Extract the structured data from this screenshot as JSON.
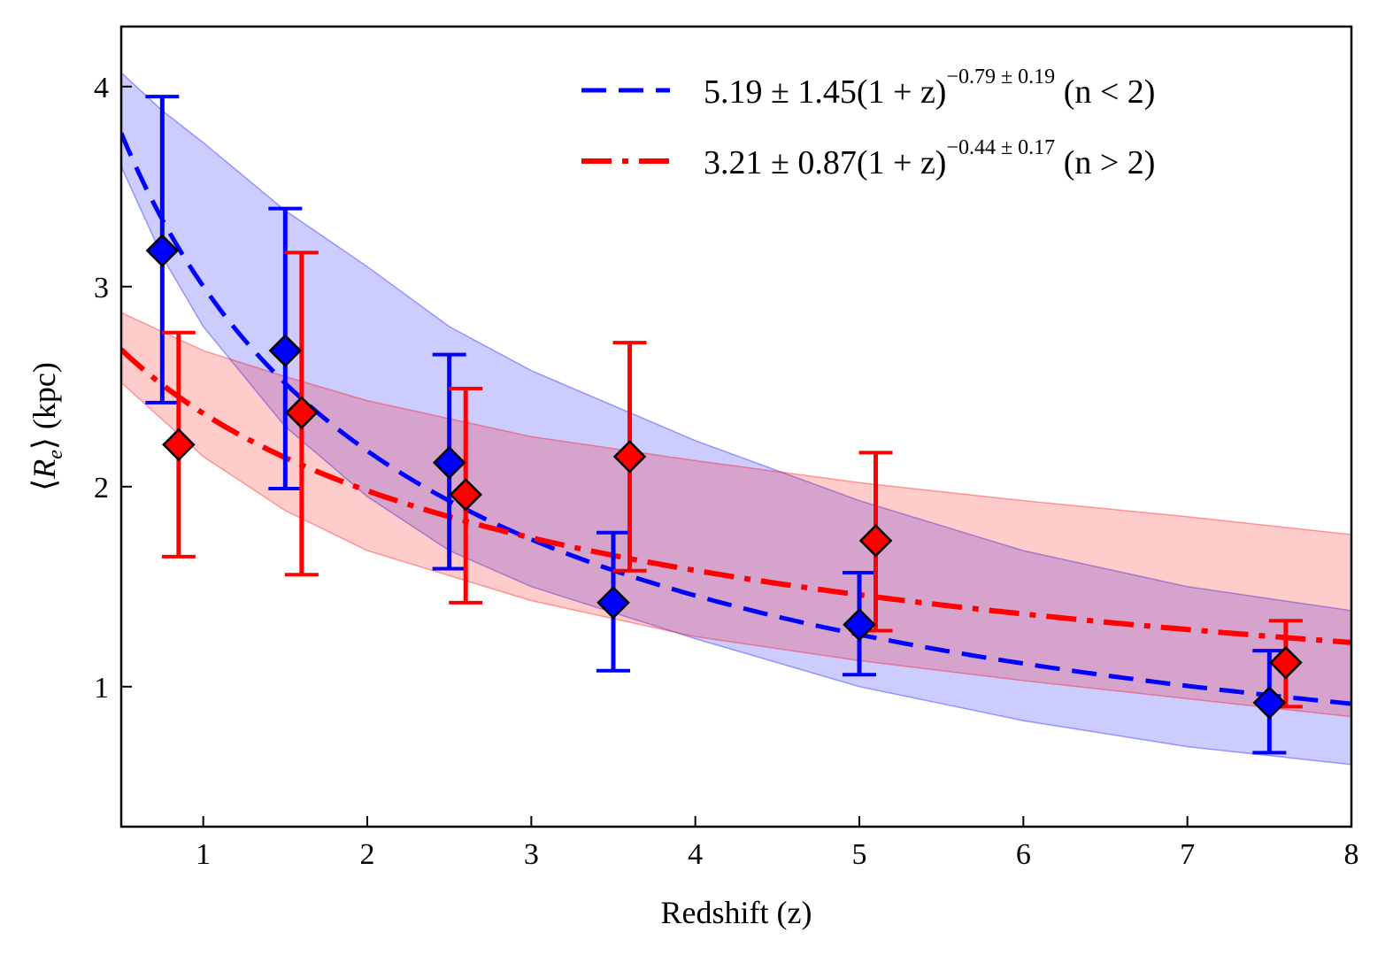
{
  "chart_data": {
    "type": "scatter",
    "title": "",
    "xlabel": "Redshift (z)",
    "ylabel": "⟨R_e⟩ (kpc)",
    "xlim": [
      0.5,
      8
    ],
    "ylim": [
      0.3,
      4.3
    ],
    "xticks": [
      1,
      2,
      3,
      4,
      5,
      6,
      7,
      8
    ],
    "yticks": [
      1,
      2,
      3,
      4
    ],
    "grid": false,
    "legend_position": "top-right",
    "series": [
      {
        "name": "n < 2",
        "color": "#0000ff",
        "marker": "diamond",
        "points": [
          {
            "x": 0.75,
            "y": 3.18,
            "ylow": 2.42,
            "yhigh": 3.95
          },
          {
            "x": 1.5,
            "y": 2.68,
            "ylow": 1.99,
            "yhigh": 3.39
          },
          {
            "x": 2.5,
            "y": 2.12,
            "ylow": 1.59,
            "yhigh": 2.66
          },
          {
            "x": 3.5,
            "y": 1.42,
            "ylow": 1.08,
            "yhigh": 1.77
          },
          {
            "x": 5.0,
            "y": 1.31,
            "ylow": 1.06,
            "yhigh": 1.57
          },
          {
            "x": 7.5,
            "y": 0.92,
            "ylow": 0.67,
            "yhigh": 1.18
          }
        ],
        "fit": {
          "A": 5.19,
          "A_err": 1.45,
          "B": -0.79,
          "B_err": 0.19,
          "linestyle": "dashed",
          "band": [
            {
              "x": 0.5,
              "low": 3.6,
              "high": 4.07
            },
            {
              "x": 0.75,
              "low": 3.15,
              "high": 3.88
            },
            {
              "x": 1.0,
              "low": 2.8,
              "high": 3.72
            },
            {
              "x": 1.5,
              "low": 2.3,
              "high": 3.38
            },
            {
              "x": 2.0,
              "low": 1.95,
              "high": 3.1
            },
            {
              "x": 2.5,
              "low": 1.68,
              "high": 2.8
            },
            {
              "x": 3.0,
              "low": 1.5,
              "high": 2.58
            },
            {
              "x": 4.0,
              "low": 1.24,
              "high": 2.23
            },
            {
              "x": 5.0,
              "low": 1.0,
              "high": 1.93
            },
            {
              "x": 6.0,
              "low": 0.83,
              "high": 1.68
            },
            {
              "x": 7.0,
              "low": 0.7,
              "high": 1.5
            },
            {
              "x": 8.0,
              "low": 0.61,
              "high": 1.38
            }
          ]
        }
      },
      {
        "name": "n > 2",
        "color": "#ff0000",
        "marker": "diamond",
        "points": [
          {
            "x": 0.85,
            "y": 2.21,
            "ylow": 1.65,
            "yhigh": 2.77
          },
          {
            "x": 1.6,
            "y": 2.37,
            "ylow": 1.56,
            "yhigh": 3.17
          },
          {
            "x": 2.6,
            "y": 1.96,
            "ylow": 1.42,
            "yhigh": 2.49
          },
          {
            "x": 3.6,
            "y": 2.15,
            "ylow": 1.58,
            "yhigh": 2.72
          },
          {
            "x": 5.1,
            "y": 1.73,
            "ylow": 1.28,
            "yhigh": 2.17
          },
          {
            "x": 7.6,
            "y": 1.12,
            "ylow": 0.9,
            "yhigh": 1.33
          }
        ],
        "fit": {
          "A": 3.21,
          "A_err": 0.87,
          "B": -0.44,
          "B_err": 0.17,
          "linestyle": "dashdot",
          "band": [
            {
              "x": 0.5,
              "low": 2.52,
              "high": 2.87
            },
            {
              "x": 1.0,
              "low": 2.15,
              "high": 2.68
            },
            {
              "x": 1.5,
              "low": 1.88,
              "high": 2.55
            },
            {
              "x": 2.0,
              "low": 1.68,
              "high": 2.43
            },
            {
              "x": 3.0,
              "low": 1.43,
              "high": 2.25
            },
            {
              "x": 4.0,
              "low": 1.25,
              "high": 2.13
            },
            {
              "x": 5.0,
              "low": 1.13,
              "high": 2.02
            },
            {
              "x": 6.0,
              "low": 1.03,
              "high": 1.93
            },
            {
              "x": 7.0,
              "low": 0.94,
              "high": 1.85
            },
            {
              "x": 8.0,
              "low": 0.85,
              "high": 1.76
            }
          ]
        }
      }
    ],
    "legend": [
      {
        "label_main": "5.19 ± 1.45(1 + z)",
        "label_exp": "−0.79 ± 0.19",
        "label_tail": " (n < 2)",
        "color": "#0000ff",
        "linestyle": "dashed"
      },
      {
        "label_main": "3.21 ± 0.87(1 + z)",
        "label_exp": "−0.44 ± 0.17",
        "label_tail": " (n > 2)",
        "color": "#ff0000",
        "linestyle": "dashdot"
      }
    ]
  }
}
